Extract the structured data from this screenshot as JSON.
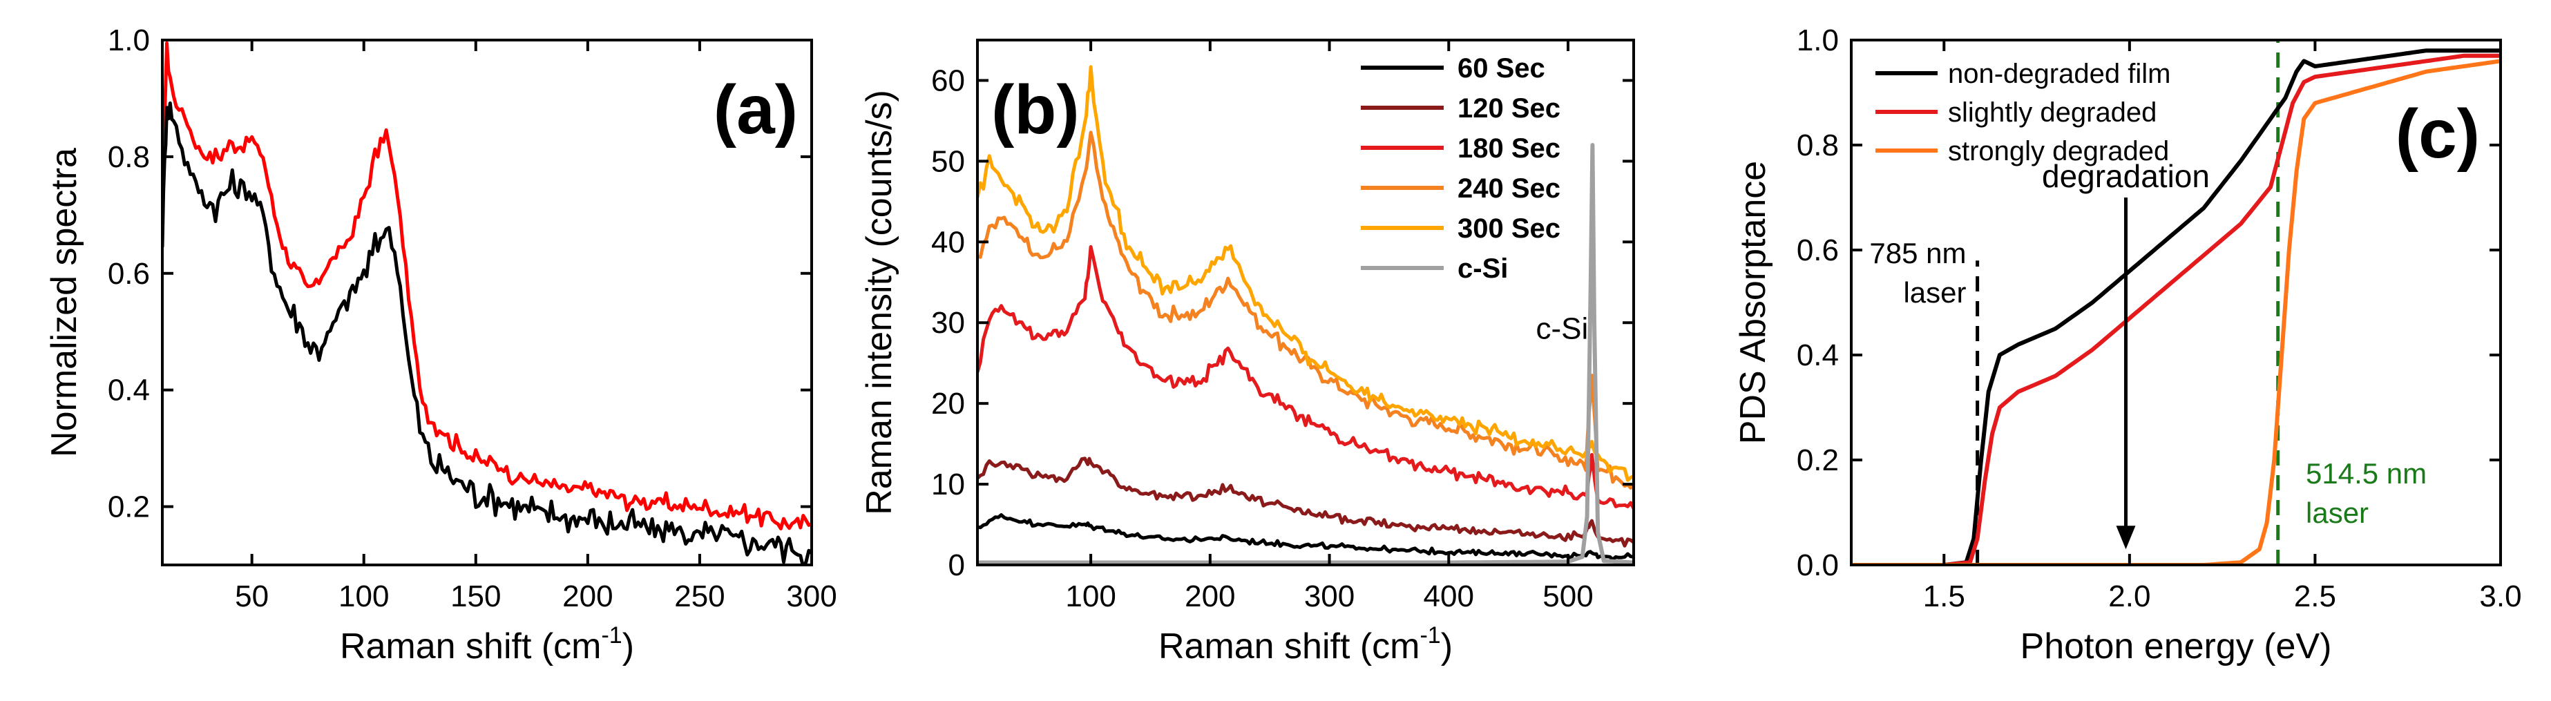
{
  "chart_data": [
    {
      "type": "line",
      "panel_label": "(a)",
      "xlabel": "Raman shift (cm",
      "xlabel_sup": "-1",
      "xlabel_tail": ")",
      "ylabel": "Normalized spectra",
      "xlim": [
        10,
        300
      ],
      "ylim": [
        0.1,
        1.0
      ],
      "xticks": [
        50,
        100,
        150,
        200,
        250,
        300
      ],
      "yticks": [
        0.2,
        0.4,
        0.6,
        0.8,
        1.0
      ],
      "xtick_labels": [
        "50",
        "100",
        "150",
        "200",
        "250",
        "300"
      ],
      "ytick_labels": [
        "0.2",
        "0.4",
        "0.6",
        "0.8",
        "1.0"
      ],
      "series": [
        {
          "color": "#ff0000",
          "noise": 0.012,
          "x": [
            10,
            12,
            15,
            20,
            25,
            30,
            35,
            40,
            45,
            50,
            55,
            60,
            65,
            70,
            75,
            80,
            85,
            90,
            95,
            100,
            105,
            110,
            115,
            120,
            125,
            130,
            140,
            150,
            160,
            170,
            180,
            190,
            200,
            210,
            220,
            230,
            240,
            250,
            260,
            270,
            280,
            290,
            300
          ],
          "y": [
            0.78,
            0.98,
            0.9,
            0.87,
            0.82,
            0.8,
            0.8,
            0.82,
            0.82,
            0.83,
            0.8,
            0.7,
            0.64,
            0.6,
            0.57,
            0.59,
            0.62,
            0.64,
            0.67,
            0.73,
            0.8,
            0.84,
            0.74,
            0.56,
            0.4,
            0.35,
            0.31,
            0.28,
            0.27,
            0.25,
            0.24,
            0.23,
            0.23,
            0.22,
            0.21,
            0.21,
            0.2,
            0.2,
            0.19,
            0.19,
            0.18,
            0.17,
            0.17
          ]
        },
        {
          "color": "#000000",
          "noise": 0.02,
          "x": [
            10,
            12,
            15,
            20,
            25,
            30,
            35,
            40,
            45,
            50,
            55,
            60,
            65,
            70,
            75,
            80,
            85,
            90,
            95,
            100,
            105,
            110,
            115,
            120,
            125,
            130,
            140,
            150,
            160,
            170,
            180,
            190,
            200,
            210,
            220,
            230,
            240,
            250,
            260,
            270,
            280,
            290,
            300
          ],
          "y": [
            0.66,
            0.9,
            0.86,
            0.8,
            0.75,
            0.72,
            0.72,
            0.75,
            0.74,
            0.74,
            0.7,
            0.6,
            0.55,
            0.52,
            0.48,
            0.47,
            0.5,
            0.54,
            0.57,
            0.6,
            0.64,
            0.68,
            0.62,
            0.45,
            0.33,
            0.28,
            0.25,
            0.22,
            0.21,
            0.2,
            0.19,
            0.18,
            0.18,
            0.17,
            0.17,
            0.16,
            0.16,
            0.15,
            0.15,
            0.14,
            0.14,
            0.13,
            0.12
          ]
        }
      ]
    },
    {
      "type": "line",
      "panel_label": "(b)",
      "xlabel": "Raman shift (cm",
      "xlabel_sup": "-1",
      "xlabel_tail": ")",
      "ylabel": "Raman intensity (counts/s)",
      "xlim": [
        5,
        555
      ],
      "ylim": [
        0,
        65
      ],
      "xticks": [
        100,
        200,
        300,
        400,
        500
      ],
      "yticks": [
        0,
        10,
        20,
        30,
        40,
        50,
        60
      ],
      "xtick_labels": [
        "100",
        "200",
        "300",
        "400",
        "500"
      ],
      "ytick_labels": [
        "0",
        "10",
        "20",
        "30",
        "40",
        "50",
        "60"
      ],
      "legend_position": "top-right",
      "annotation": "c-Si",
      "series": [
        {
          "name": "60 Sec",
          "color": "#000000",
          "noise": 0.25,
          "x": [
            5,
            15,
            25,
            40,
            60,
            80,
            95,
            100,
            110,
            130,
            160,
            190,
            215,
            240,
            280,
            320,
            360,
            400,
            450,
            500,
            515,
            520,
            525,
            540,
            555
          ],
          "y": [
            4.5,
            5.5,
            6,
            5.5,
            5,
            4.8,
            5,
            4.8,
            4.5,
            3.8,
            3.2,
            3.2,
            3.3,
            2.8,
            2.4,
            2.2,
            1.8,
            1.6,
            1.4,
            1.2,
            1.2,
            1.8,
            1.1,
            1.0,
            1.0
          ]
        },
        {
          "name": "120 Sec",
          "color": "#8b1a1a",
          "noise": 0.4,
          "x": [
            5,
            15,
            25,
            40,
            60,
            80,
            95,
            100,
            110,
            130,
            160,
            190,
            215,
            240,
            280,
            320,
            360,
            400,
            450,
            500,
            515,
            520,
            525,
            540,
            555
          ],
          "y": [
            11,
            12.5,
            12.5,
            12,
            11,
            10.5,
            13.5,
            12.5,
            12,
            9.5,
            8.5,
            8.5,
            9.5,
            8,
            6.5,
            5.5,
            5,
            4.5,
            4,
            3.5,
            3.5,
            5.5,
            3.2,
            3,
            2.8
          ]
        },
        {
          "name": "180 Sec",
          "color": "#e41a1c",
          "noise": 0.6,
          "x": [
            5,
            15,
            25,
            40,
            60,
            80,
            95,
            100,
            110,
            130,
            160,
            190,
            215,
            240,
            280,
            320,
            360,
            400,
            450,
            500,
            515,
            520,
            525,
            540,
            555
          ],
          "y": [
            24,
            31,
            32,
            30,
            28,
            29,
            33,
            39,
            33,
            27,
            23,
            22.5,
            26.5,
            22,
            18,
            15,
            13,
            11.5,
            10,
            9,
            8.5,
            13,
            8,
            7.5,
            7
          ]
        },
        {
          "name": "240 Sec",
          "color": "#f58220",
          "noise": 0.7,
          "x": [
            5,
            15,
            25,
            40,
            60,
            80,
            95,
            100,
            110,
            130,
            160,
            190,
            215,
            240,
            280,
            320,
            360,
            400,
            450,
            500,
            515,
            520,
            525,
            540,
            555
          ],
          "y": [
            38,
            42,
            43,
            41,
            38,
            40,
            48,
            53,
            45,
            37,
            31,
            31,
            35.5,
            30,
            25,
            21,
            18.5,
            17,
            15,
            13,
            12.5,
            24,
            12,
            11,
            10
          ]
        },
        {
          "name": "300 Sec",
          "color": "#ffa500",
          "noise": 0.7,
          "x": [
            5,
            15,
            25,
            40,
            60,
            80,
            95,
            100,
            110,
            130,
            160,
            190,
            215,
            240,
            280,
            320,
            360,
            400,
            450,
            500,
            515,
            520,
            525,
            540,
            555
          ],
          "y": [
            45,
            50,
            48,
            45,
            41,
            44,
            55,
            61,
            49,
            40,
            34,
            35,
            39.5,
            32,
            26,
            22,
            19.5,
            18,
            16,
            14,
            13.5,
            15,
            13,
            12,
            11
          ]
        },
        {
          "name": "c-Si",
          "color": "#a0a0a0",
          "noise": 0,
          "x": [
            5,
            100,
            200,
            300,
            400,
            500,
            512,
            516,
            519,
            520.5,
            522,
            525,
            530,
            555
          ],
          "y": [
            0.3,
            0.3,
            0.3,
            0.3,
            0.3,
            0.4,
            1,
            6,
            35,
            52,
            30,
            4,
            0.5,
            0.3
          ]
        }
      ]
    },
    {
      "type": "line",
      "panel_label": "(c)",
      "xlabel": "Photon energy (eV)",
      "ylabel": "PDS Absorptance",
      "xlim": [
        1.25,
        3.0
      ],
      "ylim": [
        0,
        1.0
      ],
      "xticks": [
        1.5,
        2.0,
        2.5,
        3.0
      ],
      "yticks": [
        0.0,
        0.2,
        0.4,
        0.6,
        0.8,
        1.0
      ],
      "xtick_labels": [
        "1.5",
        "2.0",
        "2.5",
        "3.0"
      ],
      "ytick_labels": [
        "0.0",
        "0.2",
        "0.4",
        "0.6",
        "0.8",
        "1.0"
      ],
      "legend_position": "top-left",
      "annotations": {
        "degradation": "degradation",
        "laser_785_line1": "785 nm",
        "laser_785_line2": "laser",
        "laser_514_line1": "514.5 nm",
        "laser_514_line2": "laser"
      },
      "marker_lines": [
        {
          "x": 1.59,
          "color": "#000000",
          "y_from": 0.0,
          "y_to": 0.58
        },
        {
          "x": 2.4,
          "color": "#1a7a1a",
          "y_from": 0.0,
          "y_to": 1.0
        }
      ],
      "arrow": {
        "x": 1.99,
        "y_from": 0.7,
        "y_to": 0.03
      },
      "series": [
        {
          "name": "non-degraded film",
          "color": "#000000",
          "x": [
            1.25,
            1.5,
            1.56,
            1.58,
            1.6,
            1.62,
            1.65,
            1.7,
            1.8,
            1.9,
            2.0,
            2.1,
            2.2,
            2.3,
            2.38,
            2.42,
            2.45,
            2.47,
            2.5,
            2.6,
            2.7,
            2.8,
            2.9,
            3.0
          ],
          "y": [
            0.0,
            0.0,
            0.005,
            0.05,
            0.2,
            0.33,
            0.4,
            0.42,
            0.45,
            0.5,
            0.56,
            0.62,
            0.68,
            0.77,
            0.85,
            0.89,
            0.94,
            0.96,
            0.95,
            0.96,
            0.97,
            0.98,
            0.98,
            0.98
          ]
        },
        {
          "name": "slightly degraded",
          "color": "#e41a1c",
          "x": [
            1.25,
            1.5,
            1.57,
            1.59,
            1.61,
            1.63,
            1.65,
            1.7,
            1.8,
            1.9,
            2.0,
            2.1,
            2.2,
            2.3,
            2.38,
            2.41,
            2.44,
            2.47,
            2.5,
            2.6,
            2.7,
            2.8,
            2.9,
            3.0
          ],
          "y": [
            0.0,
            0.0,
            0.005,
            0.05,
            0.16,
            0.25,
            0.3,
            0.33,
            0.36,
            0.41,
            0.47,
            0.53,
            0.59,
            0.65,
            0.72,
            0.8,
            0.88,
            0.92,
            0.93,
            0.94,
            0.95,
            0.96,
            0.97,
            0.97
          ]
        },
        {
          "name": "strongly degraded",
          "color": "#ff7518",
          "x": [
            1.25,
            2.2,
            2.3,
            2.35,
            2.37,
            2.39,
            2.41,
            2.43,
            2.45,
            2.47,
            2.5,
            2.6,
            2.7,
            2.8,
            2.9,
            3.0
          ],
          "y": [
            0.0,
            0.0,
            0.005,
            0.03,
            0.08,
            0.2,
            0.4,
            0.6,
            0.75,
            0.85,
            0.88,
            0.9,
            0.92,
            0.94,
            0.95,
            0.96
          ]
        }
      ]
    }
  ]
}
